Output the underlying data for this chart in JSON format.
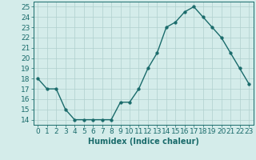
{
  "x": [
    0,
    1,
    2,
    3,
    4,
    5,
    6,
    7,
    8,
    9,
    10,
    11,
    12,
    13,
    14,
    15,
    16,
    17,
    18,
    19,
    20,
    21,
    22,
    23
  ],
  "y": [
    18,
    17,
    17,
    15,
    14,
    14,
    14,
    14,
    14,
    15.7,
    15.7,
    17,
    19,
    20.5,
    23,
    23.5,
    24.5,
    25,
    24,
    23,
    22,
    20.5,
    19,
    17.5
  ],
  "line_color": "#1a6b6b",
  "marker_color": "#1a6b6b",
  "bg_color": "#d4ecea",
  "grid_color": "#b0d0ce",
  "xlabel": "Humidex (Indice chaleur)",
  "ylim": [
    13.5,
    25.5
  ],
  "xlim": [
    -0.5,
    23.5
  ],
  "yticks": [
    14,
    15,
    16,
    17,
    18,
    19,
    20,
    21,
    22,
    23,
    24,
    25
  ],
  "xticks": [
    0,
    1,
    2,
    3,
    4,
    5,
    6,
    7,
    8,
    9,
    10,
    11,
    12,
    13,
    14,
    15,
    16,
    17,
    18,
    19,
    20,
    21,
    22,
    23
  ],
  "xlabel_fontsize": 7,
  "tick_fontsize": 6.5,
  "line_width": 1.0,
  "marker_size": 2.5
}
